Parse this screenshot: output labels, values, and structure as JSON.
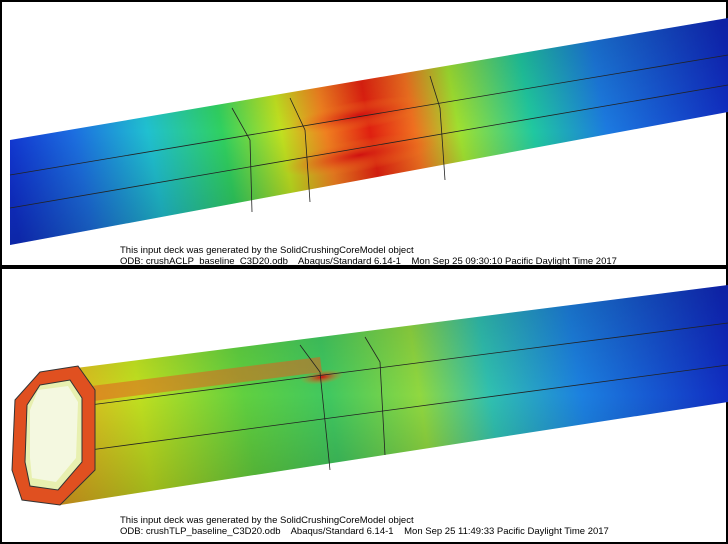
{
  "panels": [
    {
      "caption_line1": "This input deck was generated by the SolidCrushingCoreModel object",
      "caption_line2": "ODB: crushACLP_baseline_C3D20.odb    Abaqus/Standard 6.14-1    Mon Sep 25 09:30:10 Pacific Daylight Time 2017"
    },
    {
      "caption_line1": "This input deck was generated by the SolidCrushingCoreModel object",
      "caption_line2": "ODB: crushTLP_baseline_C3D20.odb    Abaqus/Standard 6.14-1    Mon Sep 25 11:49:33 Pacific Daylight Time 2017"
    }
  ]
}
